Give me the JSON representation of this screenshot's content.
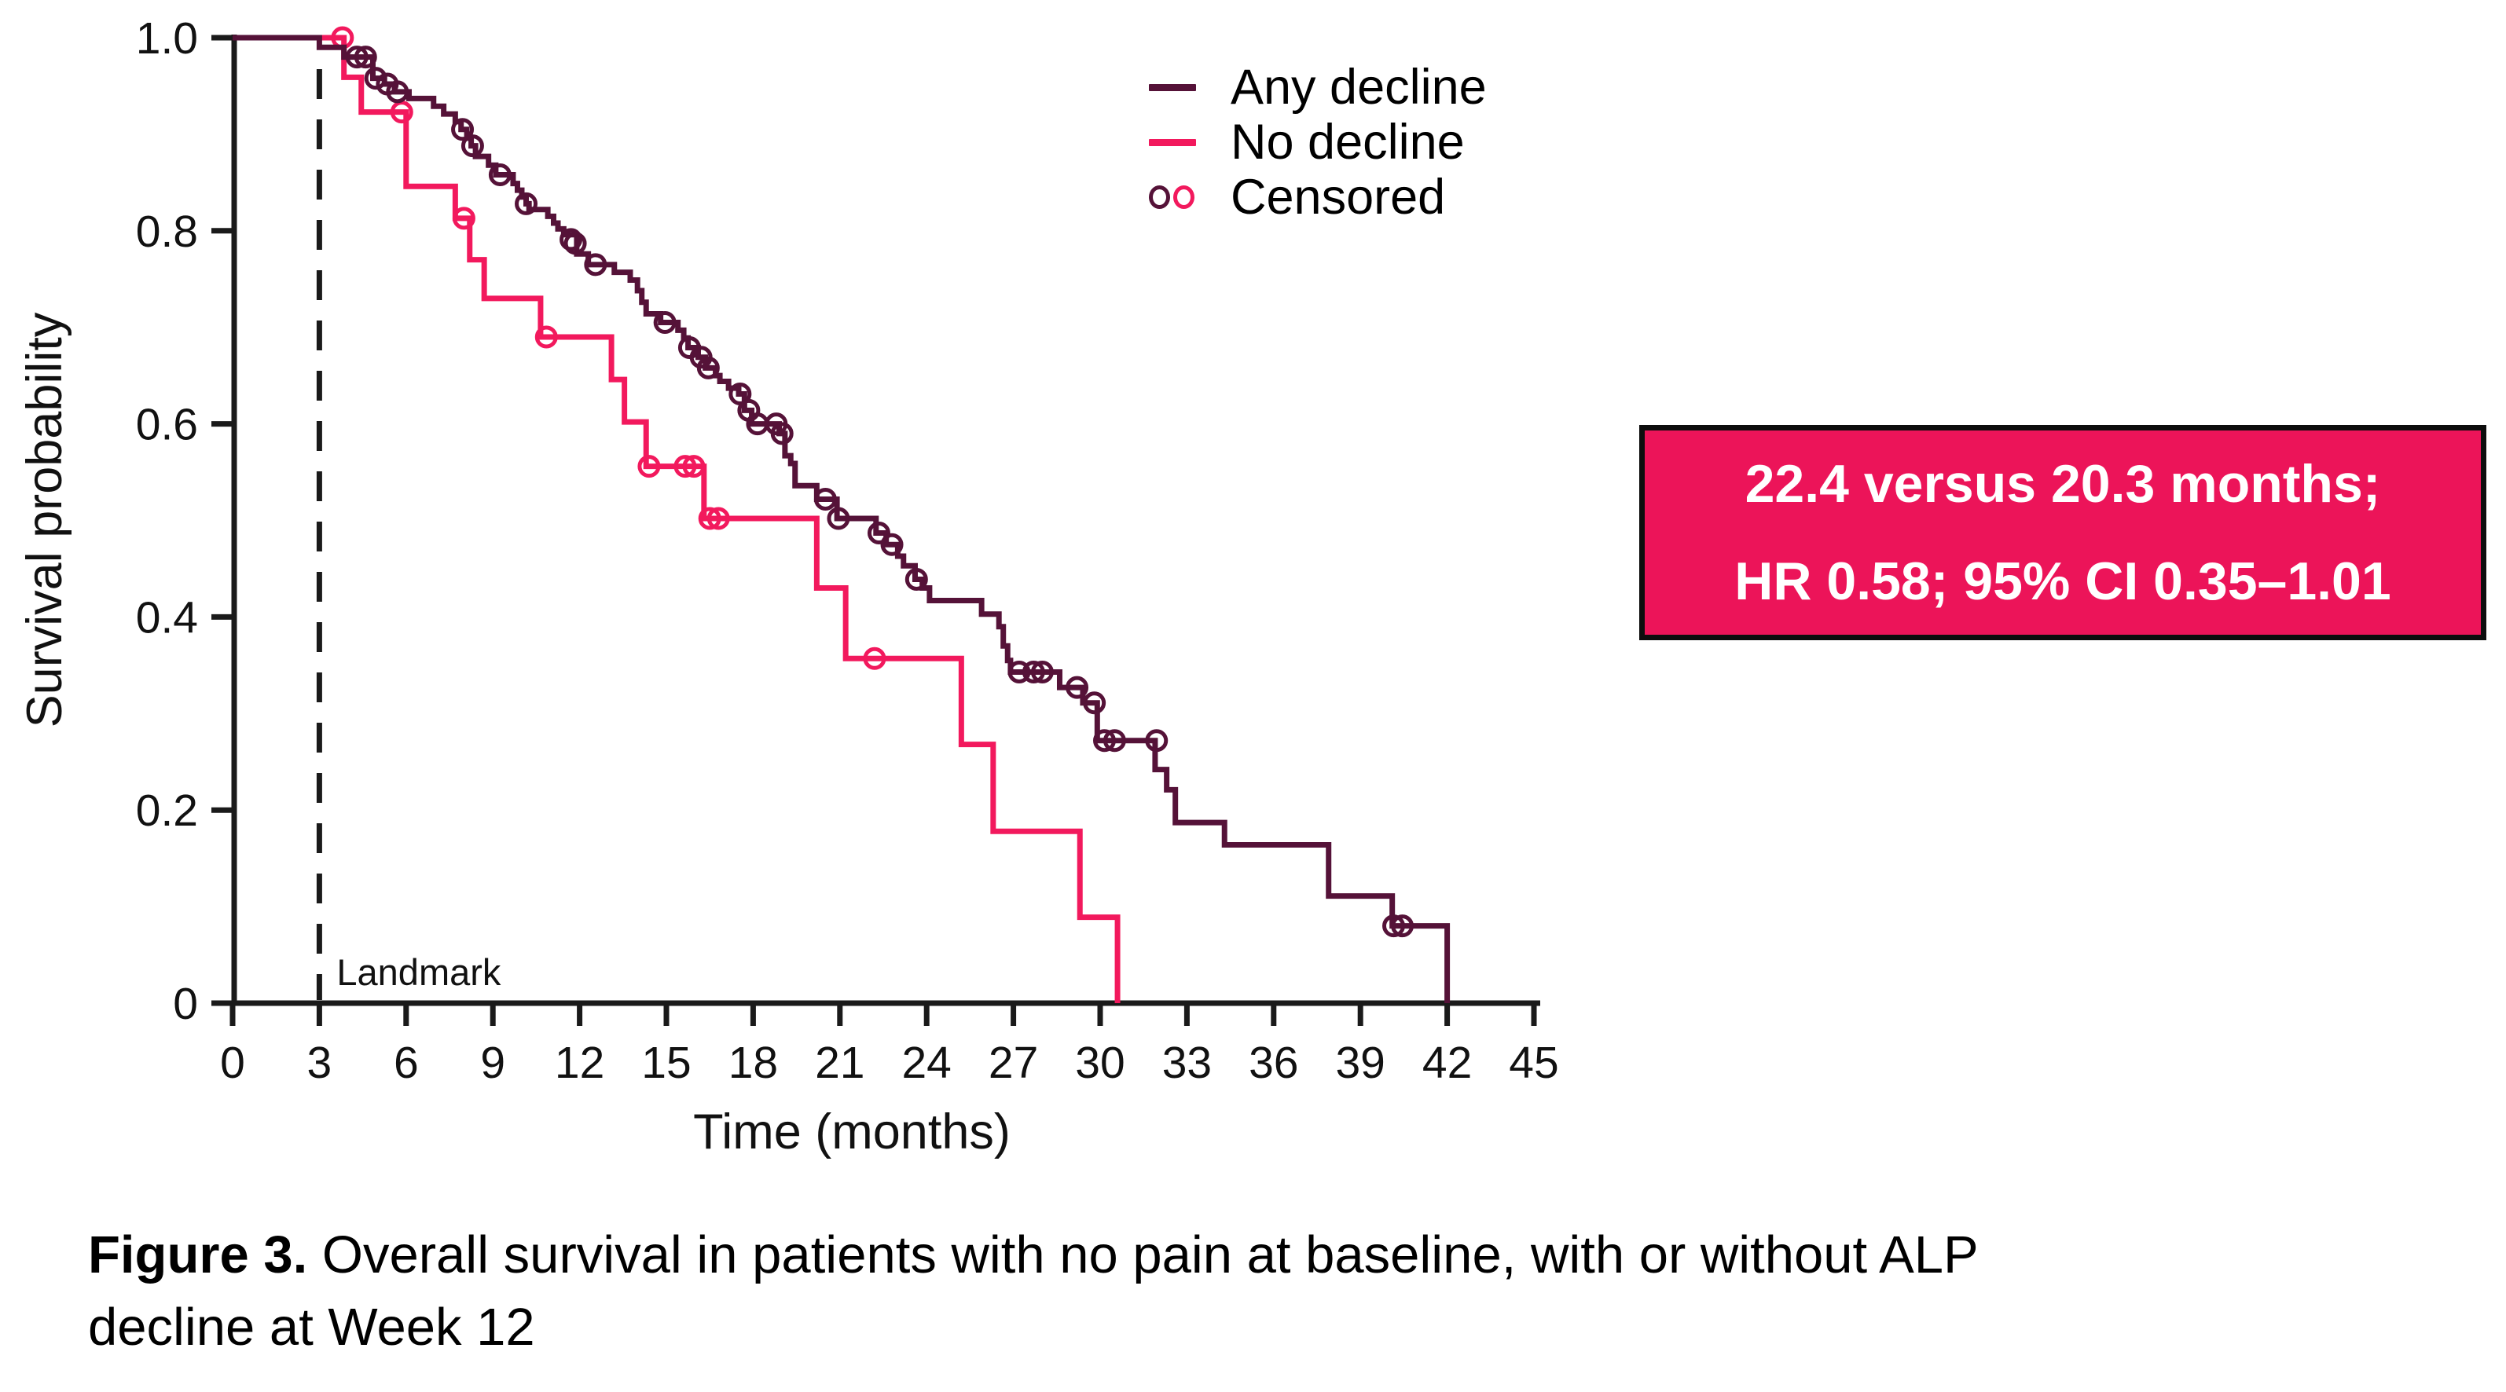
{
  "legend": {
    "items": [
      {
        "label": "Any decline",
        "marker": "line",
        "color": "#551238"
      },
      {
        "label": "No decline",
        "marker": "line",
        "color": "#F2195D"
      },
      {
        "label": "Censored",
        "marker": "circles",
        "colors": [
          "#551238",
          "#F2195D"
        ]
      }
    ]
  },
  "annotation_box": {
    "line1": "22.4 versus 20.3 months;",
    "line2": "HR 0.58; 95% CI 0.35–1.01",
    "background": "#EC1459",
    "text_color": "#FFFFFF",
    "border_color": "#0D0D0D"
  },
  "caption": {
    "label": "Figure 3.",
    "line1_rest": " Overall survival in patients with no pain at baseline, with or without ALP",
    "line2": "decline at Week 12"
  },
  "chart_data": {
    "type": "line",
    "subtype": "kaplan-meier-step-curves",
    "title": "",
    "xlabel": "Time (months)",
    "ylabel": "Survival probability",
    "xlim": [
      0,
      45
    ],
    "ylim": [
      0,
      1.0
    ],
    "xticks": [
      0,
      3,
      6,
      9,
      12,
      15,
      18,
      21,
      24,
      27,
      30,
      33,
      36,
      39,
      42,
      45
    ],
    "yticks": [
      0,
      0.2,
      0.4,
      0.6,
      0.8,
      1.0
    ],
    "ytick_labels": [
      "0",
      "0.2",
      "0.4",
      "0.6",
      "0.8",
      "1.0"
    ],
    "grid": false,
    "axis_color": "#1A1A1A",
    "legend_position": "upper-center-right inside",
    "landmark": {
      "x": 3,
      "label": "Landmark",
      "style": "dashed",
      "color": "#1A1A1A"
    },
    "series": [
      {
        "name": "Any decline",
        "color": "#551238",
        "steps": [
          [
            0,
            1.0
          ],
          [
            3.0,
            0.99
          ],
          [
            3.85,
            0.98
          ],
          [
            4.85,
            0.958
          ],
          [
            5.25,
            0.952
          ],
          [
            5.6,
            0.944
          ],
          [
            6.1,
            0.937
          ],
          [
            6.95,
            0.929
          ],
          [
            7.3,
            0.921
          ],
          [
            7.7,
            0.913
          ],
          [
            7.9,
            0.905
          ],
          [
            8.1,
            0.896
          ],
          [
            8.25,
            0.888
          ],
          [
            8.4,
            0.877
          ],
          [
            8.85,
            0.868
          ],
          [
            9.1,
            0.858
          ],
          [
            9.7,
            0.849
          ],
          [
            9.85,
            0.842
          ],
          [
            10.0,
            0.835
          ],
          [
            10.15,
            0.828
          ],
          [
            10.25,
            0.822
          ],
          [
            10.9,
            0.815
          ],
          [
            11.1,
            0.808
          ],
          [
            11.25,
            0.802
          ],
          [
            11.45,
            0.796
          ],
          [
            11.9,
            0.776
          ],
          [
            12.3,
            0.765
          ],
          [
            13.2,
            0.757
          ],
          [
            13.75,
            0.749
          ],
          [
            14.0,
            0.738
          ],
          [
            14.15,
            0.726
          ],
          [
            14.3,
            0.714
          ],
          [
            14.8,
            0.705
          ],
          [
            15.4,
            0.697
          ],
          [
            15.6,
            0.689
          ],
          [
            15.75,
            0.679
          ],
          [
            16.1,
            0.669
          ],
          [
            16.35,
            0.658
          ],
          [
            16.7,
            0.65
          ],
          [
            16.85,
            0.644
          ],
          [
            17.15,
            0.637
          ],
          [
            17.5,
            0.631
          ],
          [
            17.7,
            0.614
          ],
          [
            17.95,
            0.6
          ],
          [
            18.9,
            0.59
          ],
          [
            19.1,
            0.567
          ],
          [
            19.3,
            0.559
          ],
          [
            19.45,
            0.536
          ],
          [
            20.2,
            0.522
          ],
          [
            20.9,
            0.502
          ],
          [
            22.25,
            0.487
          ],
          [
            22.6,
            0.475
          ],
          [
            23.0,
            0.463
          ],
          [
            23.2,
            0.453
          ],
          [
            23.6,
            0.439
          ],
          [
            23.85,
            0.43
          ],
          [
            24.1,
            0.417
          ],
          [
            25.9,
            0.403
          ],
          [
            26.5,
            0.39
          ],
          [
            26.65,
            0.37
          ],
          [
            26.8,
            0.355
          ],
          [
            26.9,
            0.343
          ],
          [
            28.6,
            0.327
          ],
          [
            29.4,
            0.311
          ],
          [
            29.9,
            0.272
          ],
          [
            31.9,
            0.242
          ],
          [
            32.3,
            0.221
          ],
          [
            32.6,
            0.187
          ],
          [
            34.3,
            0.164
          ],
          [
            37.9,
            0.111
          ],
          [
            40.1,
            0.08
          ],
          [
            42.0,
            0.0
          ]
        ],
        "censored": [
          [
            4.3,
            0.98
          ],
          [
            4.6,
            0.98
          ],
          [
            4.95,
            0.958
          ],
          [
            5.35,
            0.952
          ],
          [
            5.7,
            0.944
          ],
          [
            7.95,
            0.905
          ],
          [
            8.3,
            0.888
          ],
          [
            9.25,
            0.858
          ],
          [
            10.15,
            0.828
          ],
          [
            11.7,
            0.791
          ],
          [
            11.85,
            0.787
          ],
          [
            12.55,
            0.765
          ],
          [
            14.95,
            0.705
          ],
          [
            15.8,
            0.679
          ],
          [
            16.2,
            0.669
          ],
          [
            16.45,
            0.658
          ],
          [
            17.55,
            0.631
          ],
          [
            17.85,
            0.614
          ],
          [
            18.15,
            0.6
          ],
          [
            18.8,
            0.6
          ],
          [
            19.0,
            0.59
          ],
          [
            20.5,
            0.522
          ],
          [
            20.95,
            0.502
          ],
          [
            22.35,
            0.487
          ],
          [
            22.8,
            0.475
          ],
          [
            23.65,
            0.439
          ],
          [
            27.2,
            0.343
          ],
          [
            27.7,
            0.343
          ],
          [
            28.0,
            0.343
          ],
          [
            29.2,
            0.327
          ],
          [
            29.8,
            0.311
          ],
          [
            30.15,
            0.272
          ],
          [
            30.5,
            0.272
          ],
          [
            31.95,
            0.272
          ],
          [
            40.15,
            0.08
          ],
          [
            40.45,
            0.08
          ]
        ]
      },
      {
        "name": "No decline",
        "color": "#F2195D",
        "steps": [
          [
            0,
            1.0
          ],
          [
            3.85,
            0.959
          ],
          [
            4.45,
            0.923
          ],
          [
            6.0,
            0.846
          ],
          [
            7.7,
            0.813
          ],
          [
            8.2,
            0.77
          ],
          [
            8.7,
            0.73
          ],
          [
            10.65,
            0.69
          ],
          [
            13.1,
            0.646
          ],
          [
            13.55,
            0.602
          ],
          [
            14.3,
            0.556
          ],
          [
            16.3,
            0.502
          ],
          [
            20.2,
            0.43
          ],
          [
            21.2,
            0.357
          ],
          [
            25.2,
            0.268
          ],
          [
            26.3,
            0.178
          ],
          [
            29.3,
            0.089
          ],
          [
            30.6,
            0.0
          ]
        ],
        "censored": [
          [
            3.8,
            1.0
          ],
          [
            5.85,
            0.923
          ],
          [
            8.0,
            0.813
          ],
          [
            10.85,
            0.69
          ],
          [
            14.4,
            0.556
          ],
          [
            15.65,
            0.556
          ],
          [
            15.95,
            0.556
          ],
          [
            16.5,
            0.502
          ],
          [
            16.8,
            0.502
          ],
          [
            22.2,
            0.357
          ]
        ]
      }
    ],
    "annotation": "22.4 versus 20.3 months; HR 0.58; 95% CI 0.35–1.01"
  }
}
